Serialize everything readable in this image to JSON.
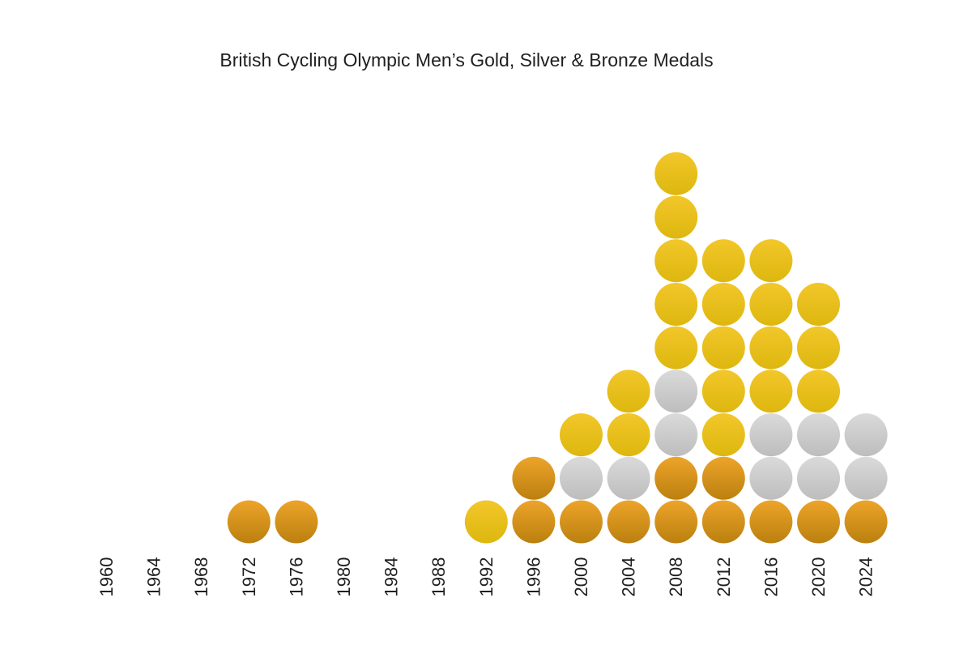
{
  "chart_data": {
    "type": "dot-stack",
    "title": "British Cycling Olympic Men’s Gold, Silver & Bronze Medals",
    "xlabel": "",
    "ylabel": "",
    "categories": [
      "1960",
      "1964",
      "1968",
      "1972",
      "1976",
      "1980",
      "1984",
      "1988",
      "1992",
      "1996",
      "2000",
      "2004",
      "2008",
      "2012",
      "2016",
      "2020",
      "2024"
    ],
    "stack_order": [
      "bronze",
      "silver",
      "gold"
    ],
    "series": [
      {
        "key": "bronze",
        "values": [
          0,
          0,
          0,
          1,
          1,
          0,
          0,
          0,
          0,
          2,
          1,
          1,
          2,
          2,
          1,
          1,
          1
        ]
      },
      {
        "key": "silver",
        "values": [
          0,
          0,
          0,
          0,
          0,
          0,
          0,
          0,
          0,
          0,
          1,
          1,
          2,
          0,
          2,
          2,
          2
        ]
      },
      {
        "key": "gold",
        "values": [
          0,
          0,
          0,
          0,
          0,
          0,
          0,
          0,
          1,
          0,
          1,
          2,
          5,
          5,
          4,
          3,
          0
        ]
      }
    ],
    "colors": {
      "gold_top": "#F2C72A",
      "gold_bottom": "#DDB70F",
      "silver_top": "#DADADA",
      "silver_bottom": "#BDBDBD",
      "bronze_top": "#EDA42A",
      "bronze_bottom": "#BB800F"
    },
    "grid": false,
    "legend": "none"
  }
}
